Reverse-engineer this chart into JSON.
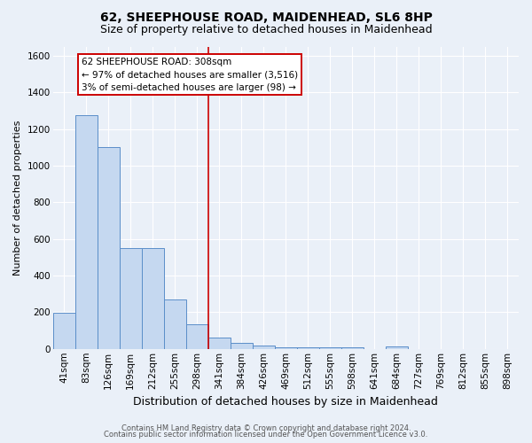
{
  "title1": "62, SHEEPHOUSE ROAD, MAIDENHEAD, SL6 8HP",
  "title2": "Size of property relative to detached houses in Maidenhead",
  "xlabel": "Distribution of detached houses by size in Maidenhead",
  "ylabel": "Number of detached properties",
  "footer1": "Contains HM Land Registry data © Crown copyright and database right 2024.",
  "footer2": "Contains public sector information licensed under the Open Government Licence v3.0.",
  "bar_labels": [
    "41sqm",
    "83sqm",
    "126sqm",
    "169sqm",
    "212sqm",
    "255sqm",
    "298sqm",
    "341sqm",
    "384sqm",
    "426sqm",
    "469sqm",
    "512sqm",
    "555sqm",
    "598sqm",
    "641sqm",
    "684sqm",
    "727sqm",
    "769sqm",
    "812sqm",
    "855sqm",
    "898sqm"
  ],
  "bar_values": [
    195,
    1275,
    1100,
    550,
    550,
    268,
    135,
    60,
    33,
    18,
    10,
    8,
    8,
    8,
    0,
    15,
    0,
    0,
    0,
    0,
    0
  ],
  "bar_color": "#c5d8f0",
  "bar_edge_color": "#5b8ec9",
  "vline_x_index": 6,
  "vline_color": "#cc0000",
  "annotation_text": "62 SHEEPHOUSE ROAD: 308sqm\n← 97% of detached houses are smaller (3,516)\n3% of semi-detached houses are larger (98) →",
  "annotation_box_color": "#ffffff",
  "annotation_box_edge": "#cc0000",
  "ylim": [
    0,
    1650
  ],
  "yticks": [
    0,
    200,
    400,
    600,
    800,
    1000,
    1200,
    1400,
    1600
  ],
  "bg_color": "#eaf0f8",
  "plot_bg_color": "#eaf0f8",
  "title1_fontsize": 10,
  "title2_fontsize": 9,
  "xlabel_fontsize": 9,
  "ylabel_fontsize": 8,
  "tick_fontsize": 7.5,
  "footer_fontsize": 6,
  "annotation_fontsize": 7.5
}
